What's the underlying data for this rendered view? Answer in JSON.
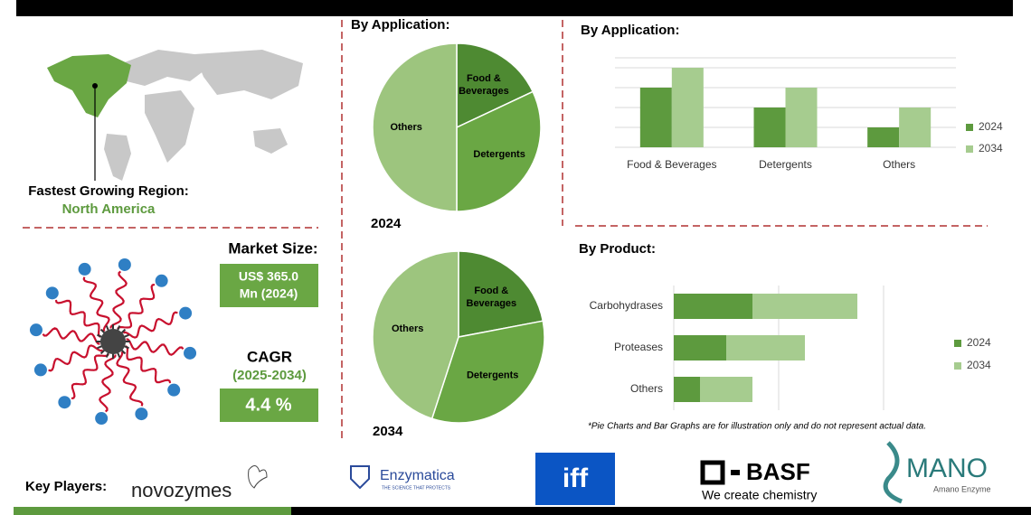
{
  "region": {
    "label": "Fastest Growing Region:",
    "value": "North America"
  },
  "market_size": {
    "label": "Market Size:",
    "value_lines": [
      "US$ 365.0",
      "Mn (2024)"
    ]
  },
  "cagr": {
    "label": "CAGR",
    "period": "(2025-2034)",
    "value": "4.4 %"
  },
  "chart_data": [
    {
      "type": "pie",
      "title": "By Application:",
      "label": "2024",
      "categories": [
        "Food & Beverages",
        "Detergents",
        "Others"
      ],
      "values": [
        18,
        32,
        50
      ],
      "colors": [
        "#4e8a32",
        "#6aa744",
        "#9dc57e"
      ]
    },
    {
      "type": "pie",
      "label": "2034",
      "categories": [
        "Food & Beverages",
        "Detergents",
        "Others"
      ],
      "values": [
        22,
        33,
        45
      ],
      "colors": [
        "#4e8a32",
        "#6aa744",
        "#9dc57e"
      ]
    },
    {
      "type": "bar",
      "title": "By Application:",
      "categories": [
        "Food & Beverages",
        "Detergents",
        "Others"
      ],
      "series": [
        {
          "name": "2024",
          "color": "#5d9a3e",
          "values": [
            3,
            2,
            1
          ]
        },
        {
          "name": "2034",
          "color": "#a6cc8f",
          "values": [
            4,
            3,
            2
          ]
        }
      ],
      "ylim": [
        0,
        4.5
      ],
      "yticks": [
        0,
        1,
        2,
        3,
        4,
        4.5
      ],
      "grid": true
    },
    {
      "type": "hbar",
      "title": "By Product:",
      "categories": [
        "Carbohydrases",
        "Proteases",
        "Others"
      ],
      "series": [
        {
          "name": "2024",
          "color": "#5d9a3e",
          "values": [
            3,
            2,
            1
          ]
        },
        {
          "name": "2034",
          "color": "#a6cc8f",
          "values": [
            4,
            3,
            2
          ]
        }
      ],
      "xlim": [
        0,
        8
      ],
      "xticks": [
        0,
        4,
        8
      ],
      "grid": true
    }
  ],
  "footnote": "*Pie Charts and Bar Graphs are for illustration only and do not represent actual data.",
  "key_players": {
    "label": "Key Players:",
    "logos": [
      {
        "name": "novozymes"
      },
      {
        "name": "Enzymatica",
        "tagline": "THE SCIENCE THAT PROTECTS"
      },
      {
        "name": "iff"
      },
      {
        "name": "BASF",
        "tagline": "We create chemistry"
      },
      {
        "name": "MANO",
        "tagline": "Amano Enzyme"
      }
    ]
  }
}
